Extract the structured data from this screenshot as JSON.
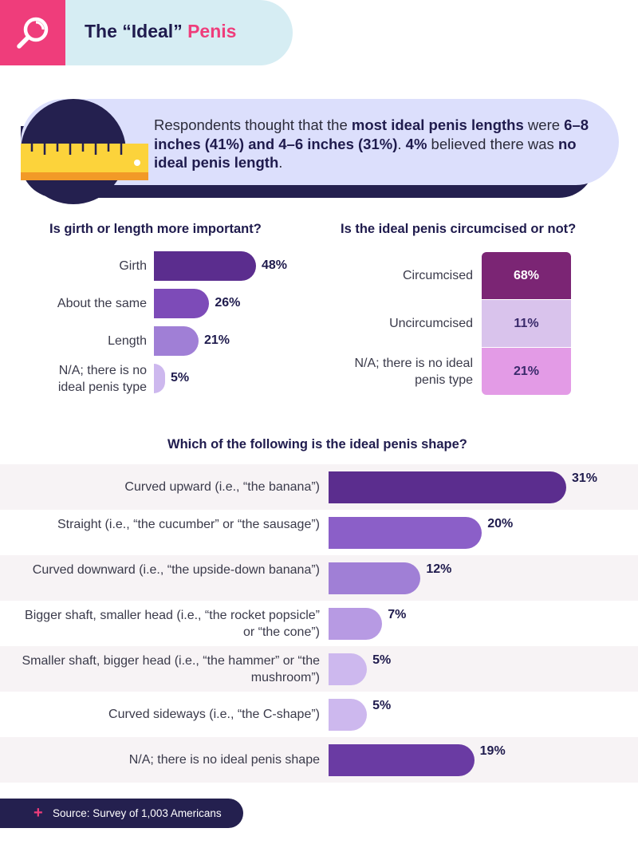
{
  "header": {
    "title_pre": "The “Ideal” ",
    "title_accent": "Penis",
    "icon": "magnifier-icon"
  },
  "banner": {
    "t1": "Respondents thought that the ",
    "b1": "most ideal penis lengths",
    "t2": " were ",
    "b2": "6–8 inches (41%) and 4–6 inches (31%)",
    "t3": ". ",
    "b3": "4%",
    "t4": " believed there was ",
    "b4": "no ideal penis length",
    "t5": ".",
    "icon": "ruler-icon"
  },
  "colors": {
    "navy": "#24204f",
    "pink": "#ef3d7b",
    "header_bg": "#d6edf3",
    "banner_bg": "#dcdffc"
  },
  "chart_data": [
    {
      "type": "bar",
      "orientation": "horizontal",
      "title": "Is girth or length more important?",
      "categories": [
        "Girth",
        "About the same",
        "Length",
        "N/A; there is no ideal penis type"
      ],
      "values": [
        48,
        26,
        21,
        5
      ],
      "value_labels": [
        "48%",
        "26%",
        "21%",
        "5%"
      ],
      "colors": [
        "#5b2d8e",
        "#7d4bb8",
        "#a07fd6",
        "#cdb8ee"
      ]
    },
    {
      "type": "bar",
      "orientation": "stacked-vertical",
      "title": "Is the ideal penis circumcised or not?",
      "categories": [
        "Circumcised",
        "Uncircumcised",
        "N/A; there is no ideal penis type"
      ],
      "values": [
        68,
        11,
        21
      ],
      "value_labels": [
        "68%",
        "11%",
        "21%"
      ],
      "colors": [
        "#7b2574",
        "#d9c3ec",
        "#e39be6"
      ],
      "text_colors": [
        "#ffffff",
        "#3a2a6b",
        "#3a2a6b"
      ]
    },
    {
      "type": "bar",
      "orientation": "horizontal",
      "title": "Which of the following is the ideal penis shape?",
      "categories": [
        "Curved upward (i.e., “the banana”)",
        "Straight (i.e., “the cucumber” or “the sausage”)",
        "Curved downward (i.e., “the upside-down banana”)",
        "Bigger shaft, smaller head (i.e., “the rocket popsicle” or “the cone”)",
        "Smaller shaft, bigger head (i.e., “the hammer” or “the mushroom”)",
        "Curved sideways (i.e., “the C-shape”)",
        "N/A; there is no ideal penis shape"
      ],
      "values": [
        31,
        20,
        12,
        7,
        5,
        5,
        19
      ],
      "value_labels": [
        "31%",
        "20%",
        "12%",
        "7%",
        "5%",
        "5%",
        "19%"
      ],
      "colors": [
        "#5b2d8e",
        "#8b5fc8",
        "#a07fd6",
        "#b79ae3",
        "#cdb8ee",
        "#cdb8ee",
        "#6a3ba3"
      ]
    }
  ],
  "footer": {
    "plus": "+",
    "source": "Source: Survey of 1,003 Americans"
  }
}
